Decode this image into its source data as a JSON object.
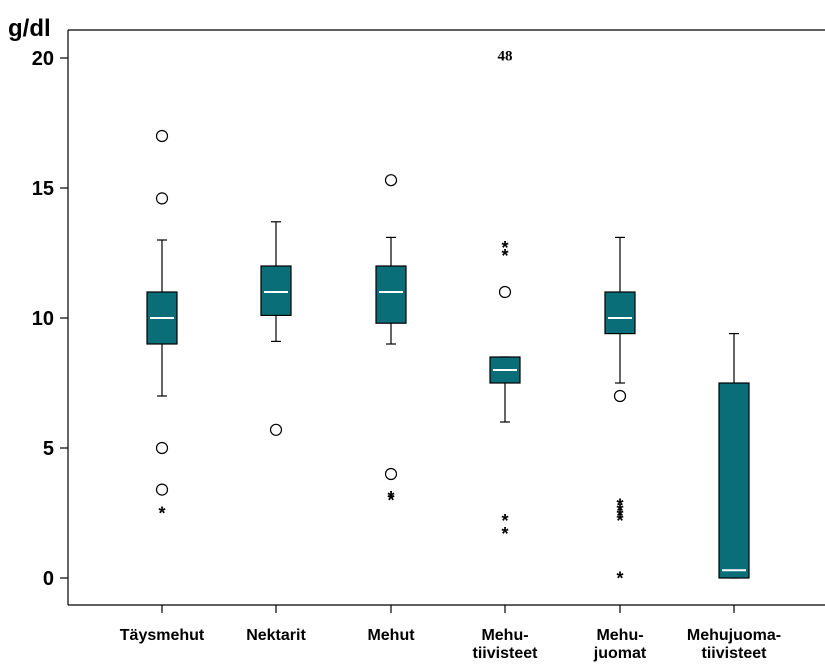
{
  "chart_data": {
    "type": "box",
    "ylabel": "g/dl",
    "ylim": [
      -1,
      21
    ],
    "yticks": [
      0,
      5,
      10,
      15,
      20
    ],
    "grid": false,
    "box_color": "#0a6e78",
    "median_color": "#ffffff",
    "categories": [
      {
        "lines": [
          "Täysmehut"
        ],
        "q1": 9.0,
        "median": 10.0,
        "q3": 11.0,
        "whisker_low": 7.0,
        "whisker_high": 13.0,
        "outliers": [
          17.0,
          14.6,
          5.0,
          3.4
        ],
        "extremes": [
          2.6
        ]
      },
      {
        "lines": [
          "Nektarit"
        ],
        "q1": 10.1,
        "median": 11.0,
        "q3": 12.0,
        "whisker_low": 9.1,
        "whisker_high": 13.7,
        "outliers": [
          5.7
        ],
        "extremes": []
      },
      {
        "lines": [
          "Mehut"
        ],
        "q1": 9.8,
        "median": 11.0,
        "q3": 12.0,
        "whisker_low": 9.0,
        "whisker_high": 13.1,
        "outliers": [
          15.3,
          4.0
        ],
        "extremes": [
          3.2,
          3.1
        ]
      },
      {
        "lines": [
          "Mehu-",
          "tiivisteet"
        ],
        "q1": 7.5,
        "median": 8.0,
        "q3": 8.5,
        "whisker_low": 6.0,
        "whisker_high": 8.5,
        "outliers": [
          11.0
        ],
        "extremes": [
          12.8,
          12.5,
          2.3,
          1.8
        ]
      },
      {
        "lines": [
          "Mehu-",
          "juomat"
        ],
        "q1": 9.4,
        "median": 10.0,
        "q3": 11.0,
        "whisker_low": 7.5,
        "whisker_high": 13.1,
        "outliers": [
          7.0
        ],
        "extremes": [
          2.9,
          2.7,
          2.5,
          2.3,
          0.1
        ]
      },
      {
        "lines": [
          "Mehujuoma-",
          "tiivisteet"
        ],
        "q1": 0.0,
        "median": 0.3,
        "q3": 7.5,
        "whisker_low": 0.0,
        "whisker_high": 9.4,
        "outliers": [],
        "extremes": []
      }
    ],
    "annotations": [
      {
        "text": "48",
        "category": 3,
        "y": 20.1
      }
    ]
  }
}
